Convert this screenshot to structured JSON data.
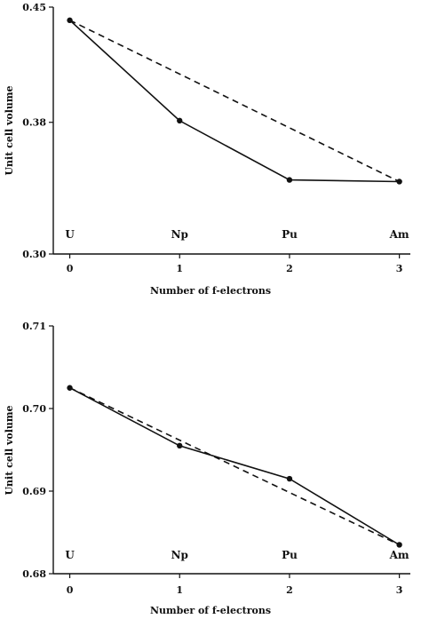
{
  "chart_data": [
    {
      "type": "line",
      "x": [
        0,
        1,
        2,
        3
      ],
      "categories": [
        "U",
        "Np",
        "Pu",
        "Am"
      ],
      "series": [
        {
          "values": [
            0.442,
            0.381,
            0.345,
            0.344
          ],
          "style": "solid",
          "markers": true
        },
        {
          "values": [
            0.442,
            0.344
          ],
          "x": [
            0,
            3
          ],
          "style": "dashed",
          "markers": false
        }
      ],
      "xlabel": "Number of f-electrons",
      "ylabel": "Unit cell volume",
      "xlim": [
        -0.15,
        3.1
      ],
      "ylim": [
        0.3,
        0.45
      ],
      "yticks": [
        "0.45",
        "0.38",
        "0.30"
      ],
      "ytick_values": [
        0.45,
        0.38,
        0.3
      ],
      "xticks": [
        "0",
        "1",
        "2",
        "3"
      ],
      "grid": false
    },
    {
      "type": "line",
      "x": [
        0,
        1,
        2,
        3
      ],
      "categories": [
        "U",
        "Np",
        "Pu",
        "Am"
      ],
      "series": [
        {
          "values": [
            0.7025,
            0.6955,
            0.6915,
            0.6835
          ],
          "style": "solid",
          "markers": true
        },
        {
          "values": [
            0.7025,
            0.6835
          ],
          "x": [
            0,
            3
          ],
          "style": "dashed",
          "markers": false
        }
      ],
      "xlabel": "Number of f-electrons",
      "ylabel": "Unit cell volume",
      "xlim": [
        -0.15,
        3.1
      ],
      "ylim": [
        0.68,
        0.71
      ],
      "yticks": [
        "0.71",
        "0.70",
        "0.69",
        "0.68"
      ],
      "ytick_values": [
        0.71,
        0.7,
        0.69,
        0.68
      ],
      "xticks": [
        "0",
        "1",
        "2",
        "3"
      ],
      "grid": false
    }
  ]
}
